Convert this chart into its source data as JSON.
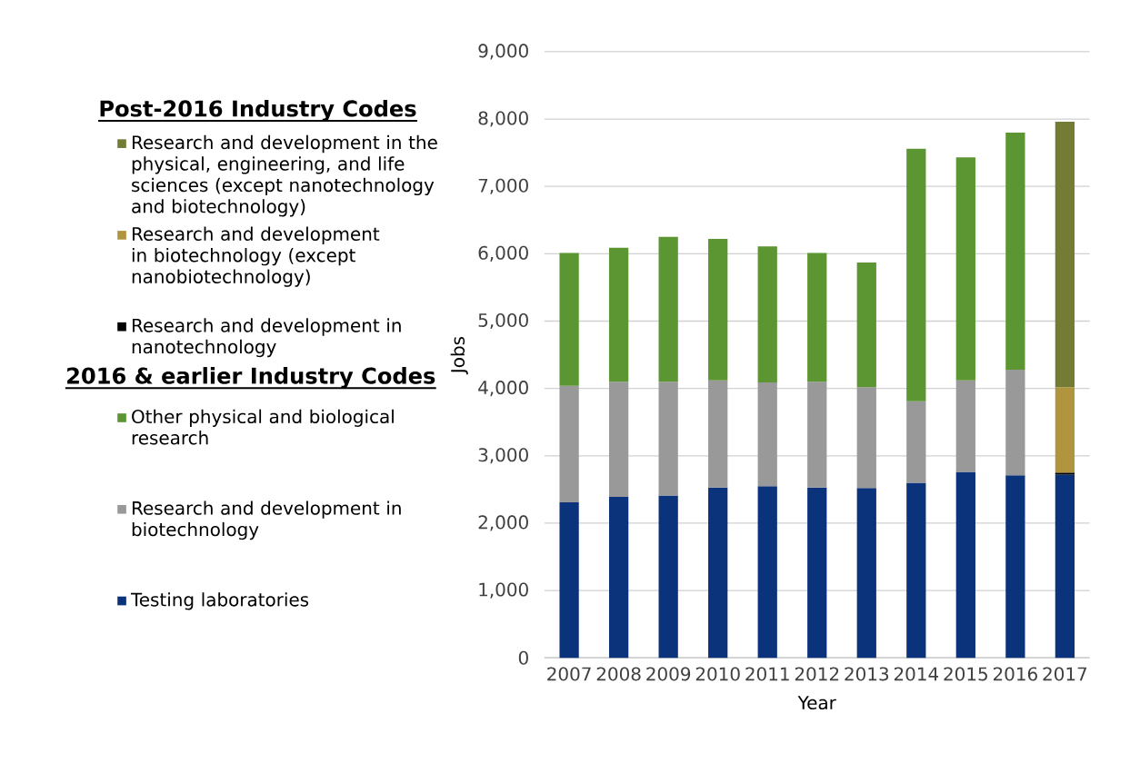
{
  "chart_data": {
    "type": "bar",
    "stacked": true,
    "xlabel": "Year",
    "ylabel": "Jobs",
    "legend_title": "Post-2016 Industry Codes",
    "annotations": [
      "2016 & earlier Industry Codes"
    ],
    "categories": [
      "2007",
      "2008",
      "2009",
      "2010",
      "2011",
      "2012",
      "2013",
      "2014",
      "2015",
      "2016",
      "2017"
    ],
    "series": [
      {
        "name": "Testing laboratories",
        "color": "#0b337b",
        "values": [
          2310,
          2390,
          2410,
          2530,
          2550,
          2530,
          2520,
          2600,
          2760,
          2710,
          2720
        ]
      },
      {
        "name": "Research and development in biotechnology",
        "color": "#999999",
        "values": [
          1730,
          1710,
          1690,
          1590,
          1540,
          1570,
          1500,
          1210,
          1360,
          1570,
          null
        ]
      },
      {
        "name": "Other physical and biological research",
        "color": "#5b9632",
        "values": [
          1970,
          1990,
          2150,
          2100,
          2020,
          1910,
          1850,
          3750,
          3310,
          3520,
          null
        ]
      },
      {
        "name": "Research and development in nanotechnology",
        "color": "#000000",
        "values": [
          null,
          null,
          null,
          null,
          null,
          null,
          null,
          null,
          null,
          null,
          30
        ]
      },
      {
        "name": "Research and development in biotechnology (except nanobiotechnology)",
        "color": "#b0953e",
        "values": [
          null,
          null,
          null,
          null,
          null,
          null,
          null,
          null,
          null,
          null,
          1270
        ]
      },
      {
        "name": "Research and development in the physical, engineering, and life sciences (except nanotechnology and biotechnology)",
        "color": "#737b35",
        "values": [
          null,
          null,
          null,
          null,
          null,
          null,
          null,
          null,
          null,
          null,
          3940
        ]
      }
    ],
    "ylim": [
      0,
      9000
    ],
    "yticks": [
      0,
      {
        "value": 1000,
        "label": "1,000"
      },
      {
        "value": 2000,
        "label": "2,000"
      },
      {
        "value": 3000,
        "label": "3,000"
      },
      {
        "value": 4000,
        "label": "4,000"
      },
      {
        "value": 5000,
        "label": "5,000"
      },
      {
        "value": 6000,
        "label": "6,000"
      },
      {
        "value": 7000,
        "label": "7,000"
      },
      {
        "value": 8000,
        "label": "8,000"
      },
      {
        "value": 9000,
        "label": "9,000"
      }
    ],
    "grid": "y",
    "legend": "left"
  }
}
